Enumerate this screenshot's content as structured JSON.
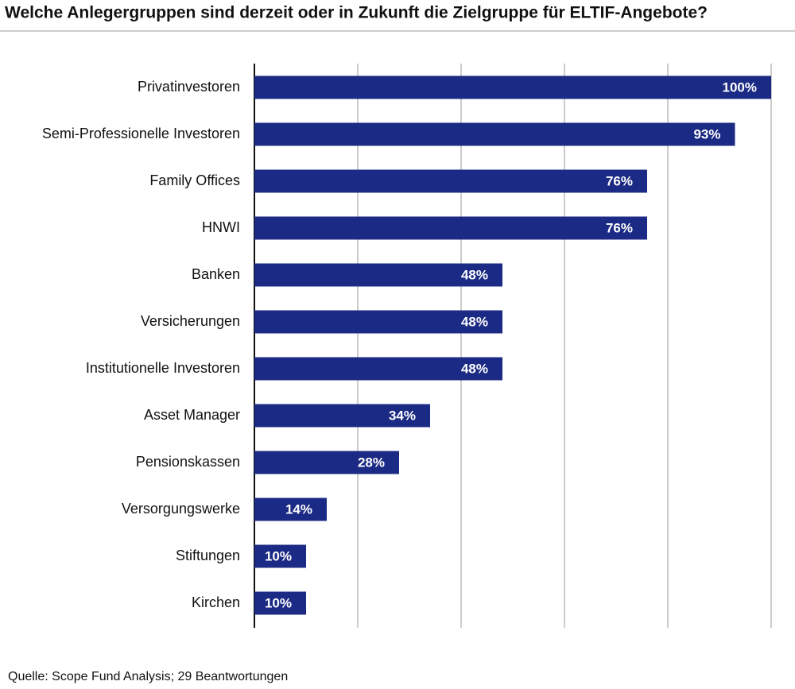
{
  "chart_data": {
    "type": "hbar",
    "title": "Welche Anlegergruppen sind derzeit oder in Zukunft die Zielgruppe für ELTIF-Angebote?",
    "source": "Quelle: Scope Fund Analysis; 29 Beantwortungen",
    "categories": [
      "Privatinvestoren",
      "Semi-Professionelle Investoren",
      "Family Offices",
      "HNWI",
      "Banken",
      "Versicherungen",
      "Institutionelle Investoren",
      "Asset Manager",
      "Pensionskassen",
      "Versorgungswerke",
      "Stiftungen",
      "Kirchen"
    ],
    "values": [
      100,
      93,
      76,
      76,
      48,
      48,
      48,
      34,
      28,
      14,
      10,
      10
    ],
    "value_labels": [
      "100%",
      "93%",
      "76%",
      "76%",
      "48%",
      "48%",
      "48%",
      "34%",
      "28%",
      "14%",
      "10%",
      "10%"
    ],
    "color": "#1b2a84",
    "xlim": [
      0,
      100
    ],
    "xticks": [
      0,
      20,
      40,
      60,
      80,
      100
    ],
    "grid": true
  }
}
